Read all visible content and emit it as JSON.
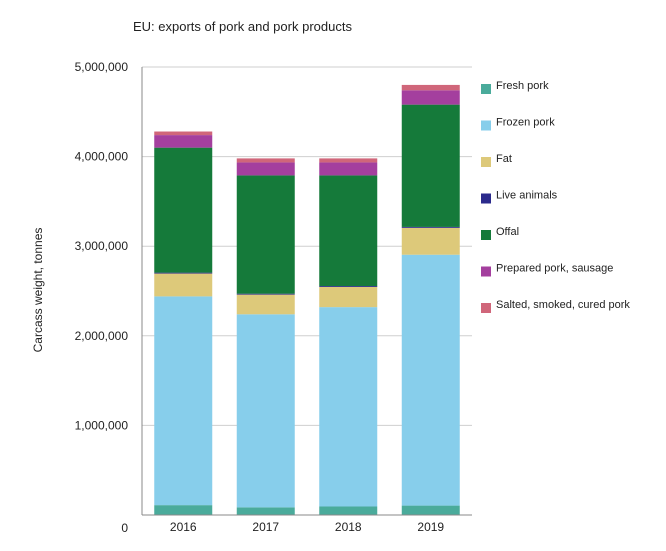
{
  "chart_data": {
    "type": "bar",
    "stacked": true,
    "title": "EU: exports of pork and pork products",
    "ylabel": "Carcass weight, tonnes",
    "xlabel": "",
    "categories": [
      "2016",
      "2017",
      "2018",
      "2019"
    ],
    "ylim": [
      0,
      5000000
    ],
    "yticks": [
      0,
      1000000,
      2000000,
      3000000,
      4000000,
      5000000
    ],
    "ytick_labels": [
      "0",
      "1,000,000",
      "2,000,000",
      "3,000,000",
      "4,000,000",
      "5,000,000"
    ],
    "grid": true,
    "legend_position": "right",
    "series": [
      {
        "name": "Fresh pork",
        "color": "#4aab9b",
        "values": [
          110000,
          85000,
          95000,
          105000
        ]
      },
      {
        "name": "Frozen pork",
        "color": "#87ceeb",
        "values": [
          2330000,
          2155000,
          2225000,
          2800000
        ]
      },
      {
        "name": "Fat",
        "color": "#ddc97a",
        "values": [
          255000,
          220000,
          225000,
          300000
        ]
      },
      {
        "name": "Live animals",
        "color": "#2b2a8c",
        "values": [
          10000,
          10000,
          10000,
          10000
        ]
      },
      {
        "name": "Offal",
        "color": "#157a3a",
        "values": [
          1395000,
          1320000,
          1235000,
          1365000
        ]
      },
      {
        "name": "Prepared pork, sausage",
        "color": "#a43f9e",
        "values": [
          140000,
          145000,
          145000,
          160000
        ]
      },
      {
        "name": "Salted, smoked, cured pork",
        "color": "#d0667a",
        "values": [
          40000,
          45000,
          45000,
          60000
        ]
      }
    ]
  }
}
